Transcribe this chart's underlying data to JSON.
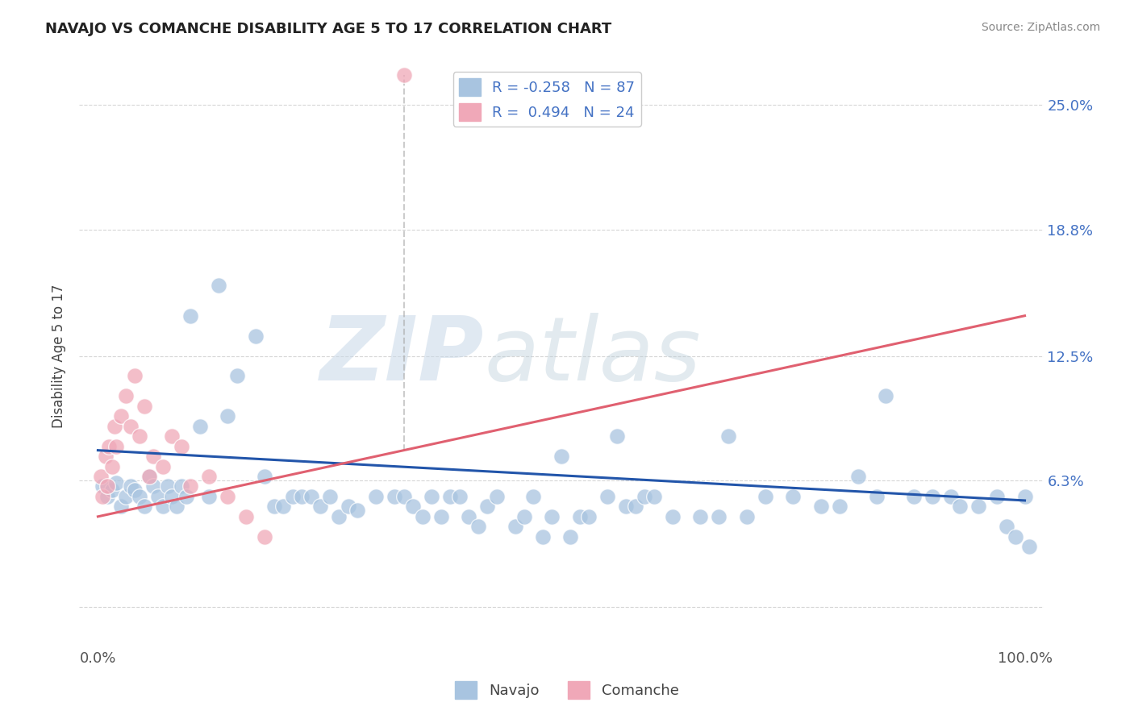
{
  "title": "NAVAJO VS COMANCHE DISABILITY AGE 5 TO 17 CORRELATION CHART",
  "source": "Source: ZipAtlas.com",
  "ylabel": "Disability Age 5 to 17",
  "xlim": [
    -2.0,
    102.0
  ],
  "ylim": [
    -2.0,
    27.0
  ],
  "ytick_vals": [
    0.0,
    6.3,
    12.5,
    18.8,
    25.0
  ],
  "ytick_labels_right": [
    "",
    "6.3%",
    "12.5%",
    "18.8%",
    "25.0%"
  ],
  "xtick_vals": [
    0.0,
    100.0
  ],
  "xtick_labels": [
    "0.0%",
    "100.0%"
  ],
  "navajo_color": "#a8c4e0",
  "comanche_color": "#f0a8b8",
  "navajo_line_color": "#2255aa",
  "comanche_line_color": "#e06070",
  "background_color": "#ffffff",
  "grid_color": "#cccccc",
  "navajo_x": [
    0.5,
    1.0,
    1.5,
    2.0,
    2.5,
    3.0,
    3.5,
    4.0,
    4.5,
    5.0,
    5.5,
    6.0,
    6.5,
    7.0,
    7.5,
    8.0,
    8.5,
    9.0,
    9.5,
    10.0,
    11.0,
    12.0,
    13.0,
    14.0,
    15.0,
    17.0,
    18.0,
    19.0,
    20.0,
    21.0,
    22.0,
    23.0,
    24.0,
    25.0,
    26.0,
    27.0,
    28.0,
    30.0,
    32.0,
    33.0,
    34.0,
    35.0,
    36.0,
    37.0,
    38.0,
    39.0,
    40.0,
    41.0,
    42.0,
    43.0,
    45.0,
    46.0,
    47.0,
    48.0,
    49.0,
    50.0,
    51.0,
    52.0,
    53.0,
    55.0,
    56.0,
    57.0,
    58.0,
    59.0,
    60.0,
    62.0,
    65.0,
    67.0,
    68.0,
    70.0,
    72.0,
    75.0,
    78.0,
    80.0,
    82.0,
    84.0,
    85.0,
    88.0,
    90.0,
    92.0,
    93.0,
    95.0,
    97.0,
    98.0,
    99.0,
    100.0,
    100.5
  ],
  "navajo_y": [
    6.0,
    5.5,
    5.8,
    6.2,
    5.0,
    5.5,
    6.0,
    5.8,
    5.5,
    5.0,
    6.5,
    6.0,
    5.5,
    5.0,
    6.0,
    5.5,
    5.0,
    6.0,
    5.5,
    14.5,
    9.0,
    5.5,
    16.0,
    9.5,
    11.5,
    13.5,
    6.5,
    5.0,
    5.0,
    5.5,
    5.5,
    5.5,
    5.0,
    5.5,
    4.5,
    5.0,
    4.8,
    5.5,
    5.5,
    5.5,
    5.0,
    4.5,
    5.5,
    4.5,
    5.5,
    5.5,
    4.5,
    4.0,
    5.0,
    5.5,
    4.0,
    4.5,
    5.5,
    3.5,
    4.5,
    7.5,
    3.5,
    4.5,
    4.5,
    5.5,
    8.5,
    5.0,
    5.0,
    5.5,
    5.5,
    4.5,
    4.5,
    4.5,
    8.5,
    4.5,
    5.5,
    5.5,
    5.0,
    5.0,
    6.5,
    5.5,
    10.5,
    5.5,
    5.5,
    5.5,
    5.0,
    5.0,
    5.5,
    4.0,
    3.5,
    5.5,
    3.0
  ],
  "comanche_x": [
    0.3,
    0.5,
    0.8,
    1.0,
    1.2,
    1.5,
    1.8,
    2.0,
    2.5,
    3.0,
    3.5,
    4.0,
    4.5,
    5.0,
    5.5,
    6.0,
    7.0,
    8.0,
    9.0,
    10.0,
    12.0,
    14.0,
    16.0,
    18.0
  ],
  "comanche_y": [
    6.5,
    5.5,
    7.5,
    6.0,
    8.0,
    7.0,
    9.0,
    8.0,
    9.5,
    10.5,
    9.0,
    11.5,
    8.5,
    10.0,
    6.5,
    7.5,
    7.0,
    8.5,
    8.0,
    6.0,
    6.5,
    5.5,
    4.5,
    3.5
  ],
  "comanche_outlier_x": 33.0,
  "comanche_outlier_y": 26.5,
  "navajo_line_x0": 0.0,
  "navajo_line_y0": 7.8,
  "navajo_line_x1": 100.0,
  "navajo_line_y1": 5.3,
  "comanche_line_x0": 0.0,
  "comanche_line_y0": 4.5,
  "comanche_line_x1": 100.0,
  "comanche_line_y1": 14.5
}
